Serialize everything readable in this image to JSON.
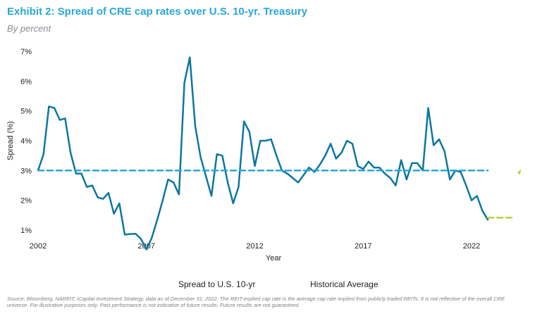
{
  "header": {
    "title": "Exhibit 2: Spread of CRE cap rates over U.S. 10-yr. Treasury",
    "subtitle": "By percent"
  },
  "legend": {
    "series_label": "Spread to U.S. 10-yr",
    "average_label": "Historical Average"
  },
  "footnote": "Source: Bloomberg, NAREIT, iCapital Investment Strategy, data as of December 31, 2022. The REIT-implied cap rate is the average cap rate implied from publicly traded REITs. It is not reflective of the overall CRE universe. For illustrative purposes only. Past performance is not indicative of future results. Future results are not guaranteed.",
  "colors": {
    "series": "#0e76a0",
    "average": "#2aa7d6",
    "current": "#b5d334",
    "title": "#2aa7d6"
  },
  "chart_data": {
    "type": "line",
    "title": "Exhibit 2: Spread of CRE cap rates over U.S. 10-yr. Treasury",
    "subtitle": "By percent",
    "xlabel": "Year",
    "ylabel": "Spread (%)",
    "xlim": [
      2002,
      2023.5
    ],
    "ylim": [
      1,
      7
    ],
    "x_ticks": [
      2002,
      2007,
      2012,
      2017,
      2022
    ],
    "y_ticks": [
      1,
      2,
      3,
      4,
      5,
      6,
      7
    ],
    "y_tick_labels": [
      "1%",
      "2%",
      "3%",
      "4%",
      "5%",
      "6%",
      "7%"
    ],
    "grid": false,
    "series": [
      {
        "name": "Spread to U.S. 10-yr",
        "style": "solid",
        "x": [
          2002.0,
          2002.25,
          2002.5,
          2002.75,
          2003.0,
          2003.25,
          2003.5,
          2003.75,
          2004.0,
          2004.25,
          2004.5,
          2004.75,
          2005.0,
          2005.25,
          2005.5,
          2005.75,
          2006.0,
          2006.25,
          2006.5,
          2006.75,
          2007.0,
          2007.25,
          2007.5,
          2007.75,
          2008.0,
          2008.25,
          2008.5,
          2008.75,
          2009.0,
          2009.25,
          2009.5,
          2009.75,
          2010.0,
          2010.25,
          2010.5,
          2010.75,
          2011.0,
          2011.25,
          2011.5,
          2011.75,
          2012.0,
          2012.25,
          2012.5,
          2012.75,
          2013.0,
          2013.25,
          2013.5,
          2013.75,
          2014.0,
          2014.25,
          2014.5,
          2014.75,
          2015.0,
          2015.25,
          2015.5,
          2015.75,
          2016.0,
          2016.25,
          2016.5,
          2016.75,
          2017.0,
          2017.25,
          2017.5,
          2017.75,
          2018.0,
          2018.25,
          2018.5,
          2018.75,
          2019.0,
          2019.25,
          2019.5,
          2019.75,
          2020.0,
          2020.25,
          2020.5,
          2020.75,
          2021.0,
          2021.25,
          2021.5,
          2021.75,
          2022.0,
          2022.25,
          2022.5,
          2022.75
        ],
        "y": [
          3.0,
          3.55,
          5.15,
          5.1,
          4.7,
          4.75,
          3.6,
          2.9,
          2.9,
          2.45,
          2.5,
          2.1,
          2.05,
          2.25,
          1.55,
          1.9,
          0.85,
          0.87,
          0.88,
          0.7,
          0.35,
          0.75,
          1.35,
          2.0,
          2.7,
          2.6,
          2.2,
          5.95,
          6.8,
          4.5,
          3.45,
          2.8,
          2.15,
          3.55,
          3.5,
          2.6,
          1.9,
          2.45,
          4.65,
          4.3,
          3.15,
          4.0,
          4.0,
          4.05,
          3.5,
          3.0,
          2.9,
          2.75,
          2.6,
          2.85,
          3.1,
          2.95,
          3.2,
          3.5,
          3.9,
          3.4,
          3.6,
          4.0,
          3.9,
          3.15,
          3.05,
          3.3,
          3.1,
          3.1,
          2.9,
          2.75,
          2.5,
          3.35,
          2.7,
          3.25,
          3.25,
          3.0,
          5.1,
          3.85,
          4.05,
          3.65,
          2.7,
          3.0,
          2.95,
          2.5,
          2.0,
          2.15,
          1.65,
          1.35
        ]
      },
      {
        "name": "Historical Average",
        "style": "dashed",
        "x": [
          2002.0,
          2022.75
        ],
        "y": [
          3.0,
          3.0
        ]
      },
      {
        "style": "dashed",
        "x": [
          2022.75,
          2023.95
        ],
        "y": [
          1.42,
          1.42
        ]
      }
    ]
  }
}
